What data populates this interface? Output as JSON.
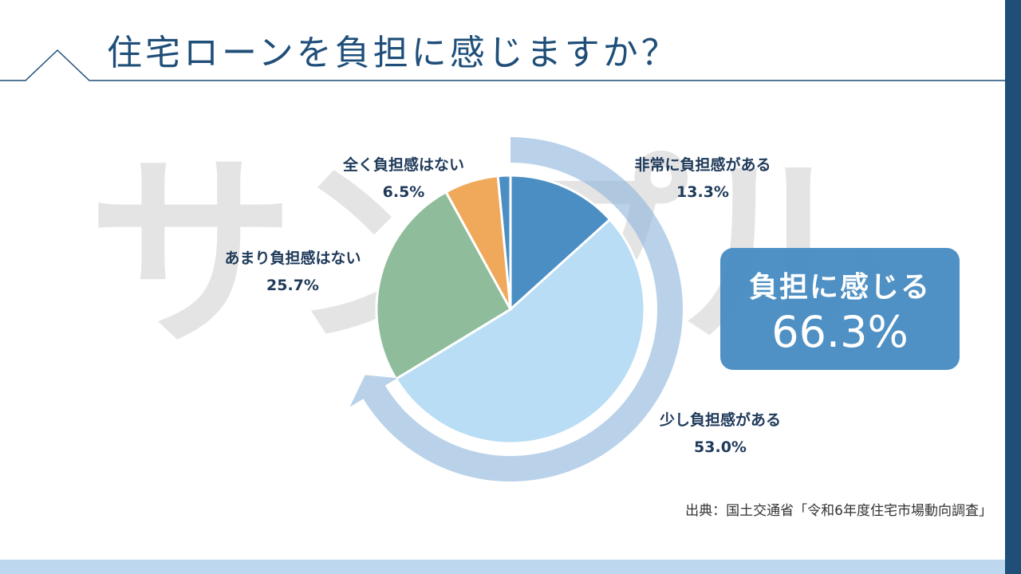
{
  "header": {
    "title": "住宅ローンを負担に感じますか？"
  },
  "watermark": "サンプル",
  "chart_data": {
    "type": "pie",
    "start_angle": "top",
    "direction": "clockwise",
    "slices": [
      {
        "label": "非常に負担感がある",
        "value": 13.3,
        "display": "13.3%",
        "color": "#4a8ec3"
      },
      {
        "label": "少し負担感がある",
        "value": 53.0,
        "display": "53.0%",
        "color": "#b8ddf5"
      },
      {
        "label": "あまり負担感はない",
        "value": 25.7,
        "display": "25.7%",
        "color": "#8fbc9a"
      },
      {
        "label": "全く負担感はない",
        "value": 6.5,
        "display": "6.5%",
        "color": "#f0a95a"
      },
      {
        "label": "",
        "value": 1.5,
        "display": "",
        "color": "#4a8ec3"
      }
    ],
    "highlight": {
      "label": "負担に感じる",
      "value": "66.3%"
    },
    "source": "出典：国土交通省「令和6年度住宅市場動向調査」"
  }
}
